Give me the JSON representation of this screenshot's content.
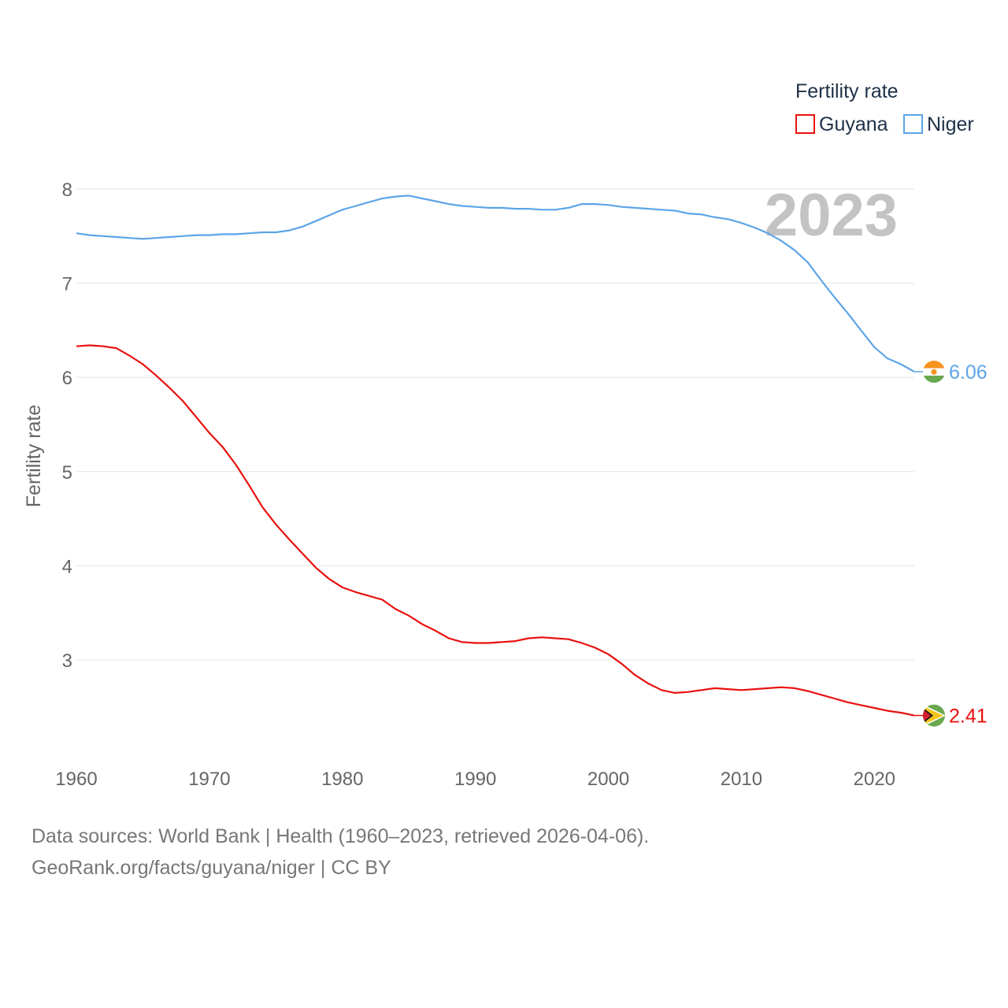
{
  "chart_data": {
    "type": "line",
    "year_label": "2023",
    "ylabel": "Fertility rate",
    "xlabel": "",
    "xlim": [
      1960,
      2023
    ],
    "ylim": [
      2.1,
      8.4
    ],
    "y_ticks": [
      3,
      4,
      5,
      6,
      7,
      8
    ],
    "x_ticks": [
      1960,
      1970,
      1980,
      1990,
      2000,
      2010,
      2020
    ],
    "grid": true,
    "legend": {
      "title": "Fertility rate",
      "position": "top-right"
    },
    "x": [
      1960,
      1961,
      1962,
      1963,
      1964,
      1965,
      1966,
      1967,
      1968,
      1969,
      1970,
      1971,
      1972,
      1973,
      1974,
      1975,
      1976,
      1977,
      1978,
      1979,
      1980,
      1981,
      1982,
      1983,
      1984,
      1985,
      1986,
      1987,
      1988,
      1989,
      1990,
      1991,
      1992,
      1993,
      1994,
      1995,
      1996,
      1997,
      1998,
      1999,
      2000,
      2001,
      2002,
      2003,
      2004,
      2005,
      2006,
      2007,
      2008,
      2009,
      2010,
      2011,
      2012,
      2013,
      2014,
      2015,
      2016,
      2017,
      2018,
      2019,
      2020,
      2021,
      2022,
      2023
    ],
    "series": [
      {
        "name": "Guyana",
        "color": "#e8110f",
        "end_label": "2.41",
        "values": [
          6.33,
          6.34,
          6.33,
          6.31,
          6.23,
          6.14,
          6.02,
          5.89,
          5.75,
          5.58,
          5.41,
          5.26,
          5.07,
          4.85,
          4.62,
          4.44,
          4.28,
          4.13,
          3.98,
          3.86,
          3.77,
          3.72,
          3.68,
          3.64,
          3.54,
          3.47,
          3.38,
          3.31,
          3.23,
          3.19,
          3.18,
          3.18,
          3.19,
          3.2,
          3.23,
          3.24,
          3.23,
          3.22,
          3.18,
          3.13,
          3.06,
          2.96,
          2.84,
          2.75,
          2.68,
          2.65,
          2.66,
          2.68,
          2.7,
          2.69,
          2.68,
          2.69,
          2.7,
          2.71,
          2.7,
          2.67,
          2.63,
          2.59,
          2.55,
          2.52,
          2.49,
          2.46,
          2.44,
          2.41
        ]
      },
      {
        "name": "Niger",
        "color": "#5da5e8",
        "end_label": "6.06",
        "values": [
          7.53,
          7.51,
          7.5,
          7.49,
          7.48,
          7.47,
          7.48,
          7.49,
          7.5,
          7.51,
          7.51,
          7.52,
          7.52,
          7.53,
          7.54,
          7.54,
          7.56,
          7.6,
          7.66,
          7.72,
          7.78,
          7.82,
          7.86,
          7.9,
          7.92,
          7.93,
          7.9,
          7.87,
          7.84,
          7.82,
          7.81,
          7.8,
          7.8,
          7.79,
          7.79,
          7.78,
          7.78,
          7.8,
          7.84,
          7.84,
          7.83,
          7.81,
          7.8,
          7.79,
          7.78,
          7.77,
          7.74,
          7.73,
          7.7,
          7.68,
          7.64,
          7.59,
          7.53,
          7.45,
          7.35,
          7.22,
          7.03,
          6.85,
          6.68,
          6.5,
          6.32,
          6.2,
          6.14,
          6.06
        ]
      }
    ]
  },
  "footer": {
    "line1": "Data sources: World Bank | Health (1960–2023, retrieved 2026-04-06).",
    "line2": "GeoRank.org/facts/guyana/niger | CC BY"
  }
}
